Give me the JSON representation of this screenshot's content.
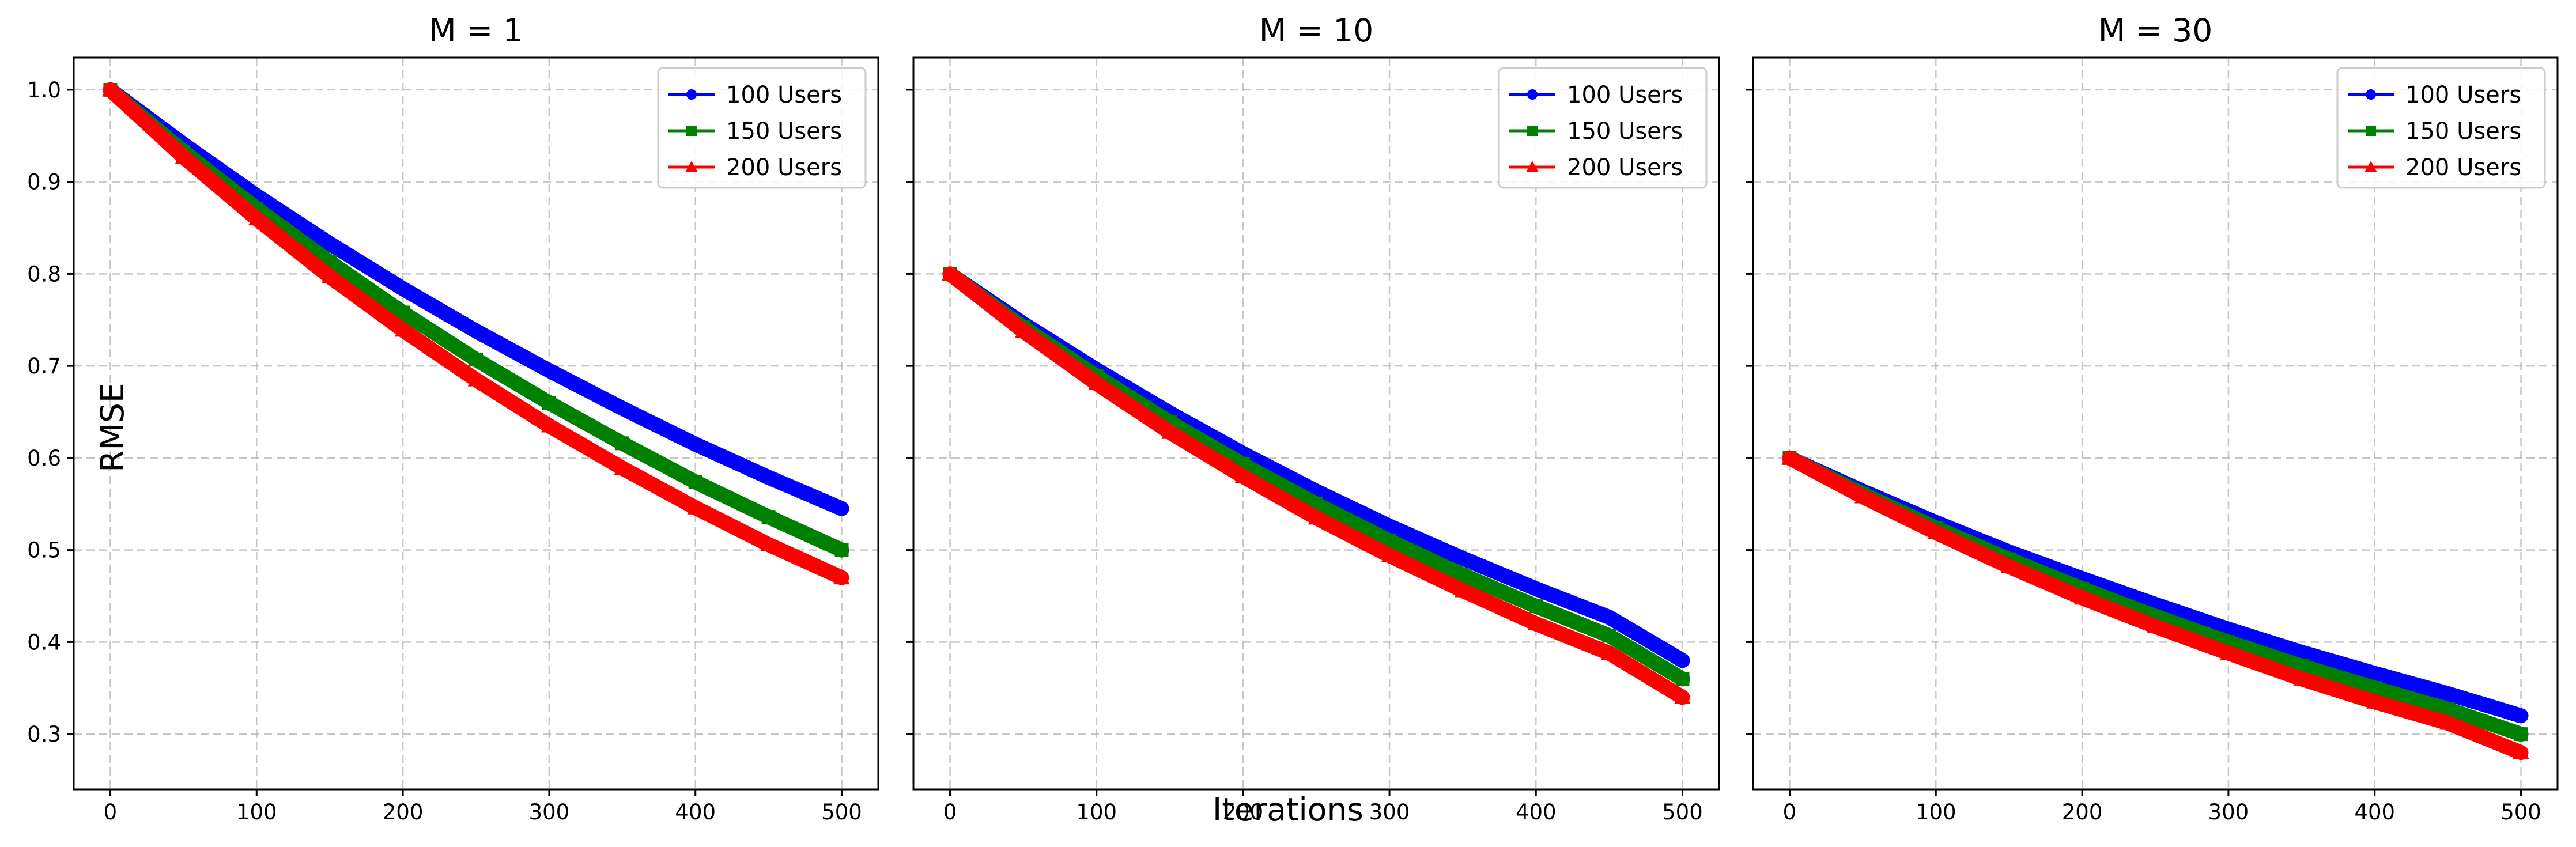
{
  "figure": {
    "xlabel": "Iterations",
    "ylabel": "RMSE"
  },
  "chart_data": [
    {
      "type": "line",
      "title": "M = 1",
      "xlabel": "Iterations",
      "ylabel": "RMSE",
      "xlim": [
        -25,
        525
      ],
      "ylim": [
        0.24,
        1.035
      ],
      "xticks": [
        0,
        100,
        200,
        300,
        400,
        500
      ],
      "yticks": [
        0.3,
        0.4,
        0.5,
        0.6,
        0.7,
        0.8,
        0.9,
        1.0
      ],
      "grid": true,
      "legend_position": "top-right",
      "x": [
        0,
        50,
        100,
        150,
        200,
        250,
        300,
        350,
        400,
        450,
        500
      ],
      "series": [
        {
          "name": "100 Users",
          "color": "#0000ff",
          "marker": "circle",
          "values": [
            1.0,
            0.941,
            0.885,
            0.833,
            0.784,
            0.738,
            0.695,
            0.654,
            0.615,
            0.579,
            0.545
          ]
        },
        {
          "name": "150 Users",
          "color": "#008000",
          "marker": "square",
          "values": [
            1.0,
            0.933,
            0.871,
            0.813,
            0.758,
            0.707,
            0.66,
            0.616,
            0.574,
            0.536,
            0.5
          ]
        },
        {
          "name": "200 Users",
          "color": "#ff0000",
          "marker": "triangle",
          "values": [
            1.0,
            0.927,
            0.86,
            0.797,
            0.739,
            0.685,
            0.635,
            0.589,
            0.546,
            0.506,
            0.47
          ]
        }
      ]
    },
    {
      "type": "line",
      "title": "M = 10",
      "xlabel": "Iterations",
      "ylabel": "RMSE",
      "xlim": [
        -25,
        525
      ],
      "ylim": [
        0.24,
        1.035
      ],
      "xticks": [
        0,
        100,
        200,
        300,
        400,
        500
      ],
      "yticks": [
        0.3,
        0.4,
        0.5,
        0.6,
        0.7,
        0.8,
        0.9,
        1.0
      ],
      "grid": true,
      "legend_position": "top-right",
      "x": [
        0,
        50,
        100,
        150,
        200,
        250,
        300,
        350,
        400,
        450,
        500
      ],
      "series": [
        {
          "name": "100 Users",
          "color": "#0000ff",
          "marker": "circle",
          "values": [
            0.8,
            0.746,
            0.696,
            0.649,
            0.605,
            0.564,
            0.526,
            0.491,
            0.458,
            0.427,
            0.38
          ]
        },
        {
          "name": "150 Users",
          "color": "#008000",
          "marker": "square",
          "values": [
            0.8,
            0.742,
            0.689,
            0.639,
            0.593,
            0.55,
            0.51,
            0.473,
            0.439,
            0.407,
            0.36
          ]
        },
        {
          "name": "200 Users",
          "color": "#ff0000",
          "marker": "triangle",
          "values": [
            0.8,
            0.738,
            0.681,
            0.628,
            0.58,
            0.535,
            0.494,
            0.456,
            0.42,
            0.388,
            0.34
          ]
        }
      ]
    },
    {
      "type": "line",
      "title": "M = 30",
      "xlabel": "Iterations",
      "ylabel": "RMSE",
      "xlim": [
        -25,
        525
      ],
      "ylim": [
        0.24,
        1.035
      ],
      "xticks": [
        0,
        100,
        200,
        300,
        400,
        500
      ],
      "yticks": [
        0.3,
        0.4,
        0.5,
        0.6,
        0.7,
        0.8,
        0.9,
        1.0
      ],
      "grid": true,
      "legend_position": "top-right",
      "x": [
        0,
        50,
        100,
        150,
        200,
        250,
        300,
        350,
        400,
        450,
        500
      ],
      "series": [
        {
          "name": "100 Users",
          "color": "#0000ff",
          "marker": "circle",
          "values": [
            0.6,
            0.564,
            0.53,
            0.498,
            0.469,
            0.441,
            0.414,
            0.389,
            0.366,
            0.344,
            0.32
          ]
        },
        {
          "name": "150 Users",
          "color": "#008000",
          "marker": "square",
          "values": [
            0.6,
            0.561,
            0.524,
            0.49,
            0.458,
            0.428,
            0.4,
            0.374,
            0.35,
            0.327,
            0.3
          ]
        },
        {
          "name": "200 Users",
          "color": "#ff0000",
          "marker": "triangle",
          "values": [
            0.6,
            0.558,
            0.519,
            0.482,
            0.448,
            0.417,
            0.388,
            0.36,
            0.335,
            0.312,
            0.28
          ]
        }
      ]
    }
  ]
}
